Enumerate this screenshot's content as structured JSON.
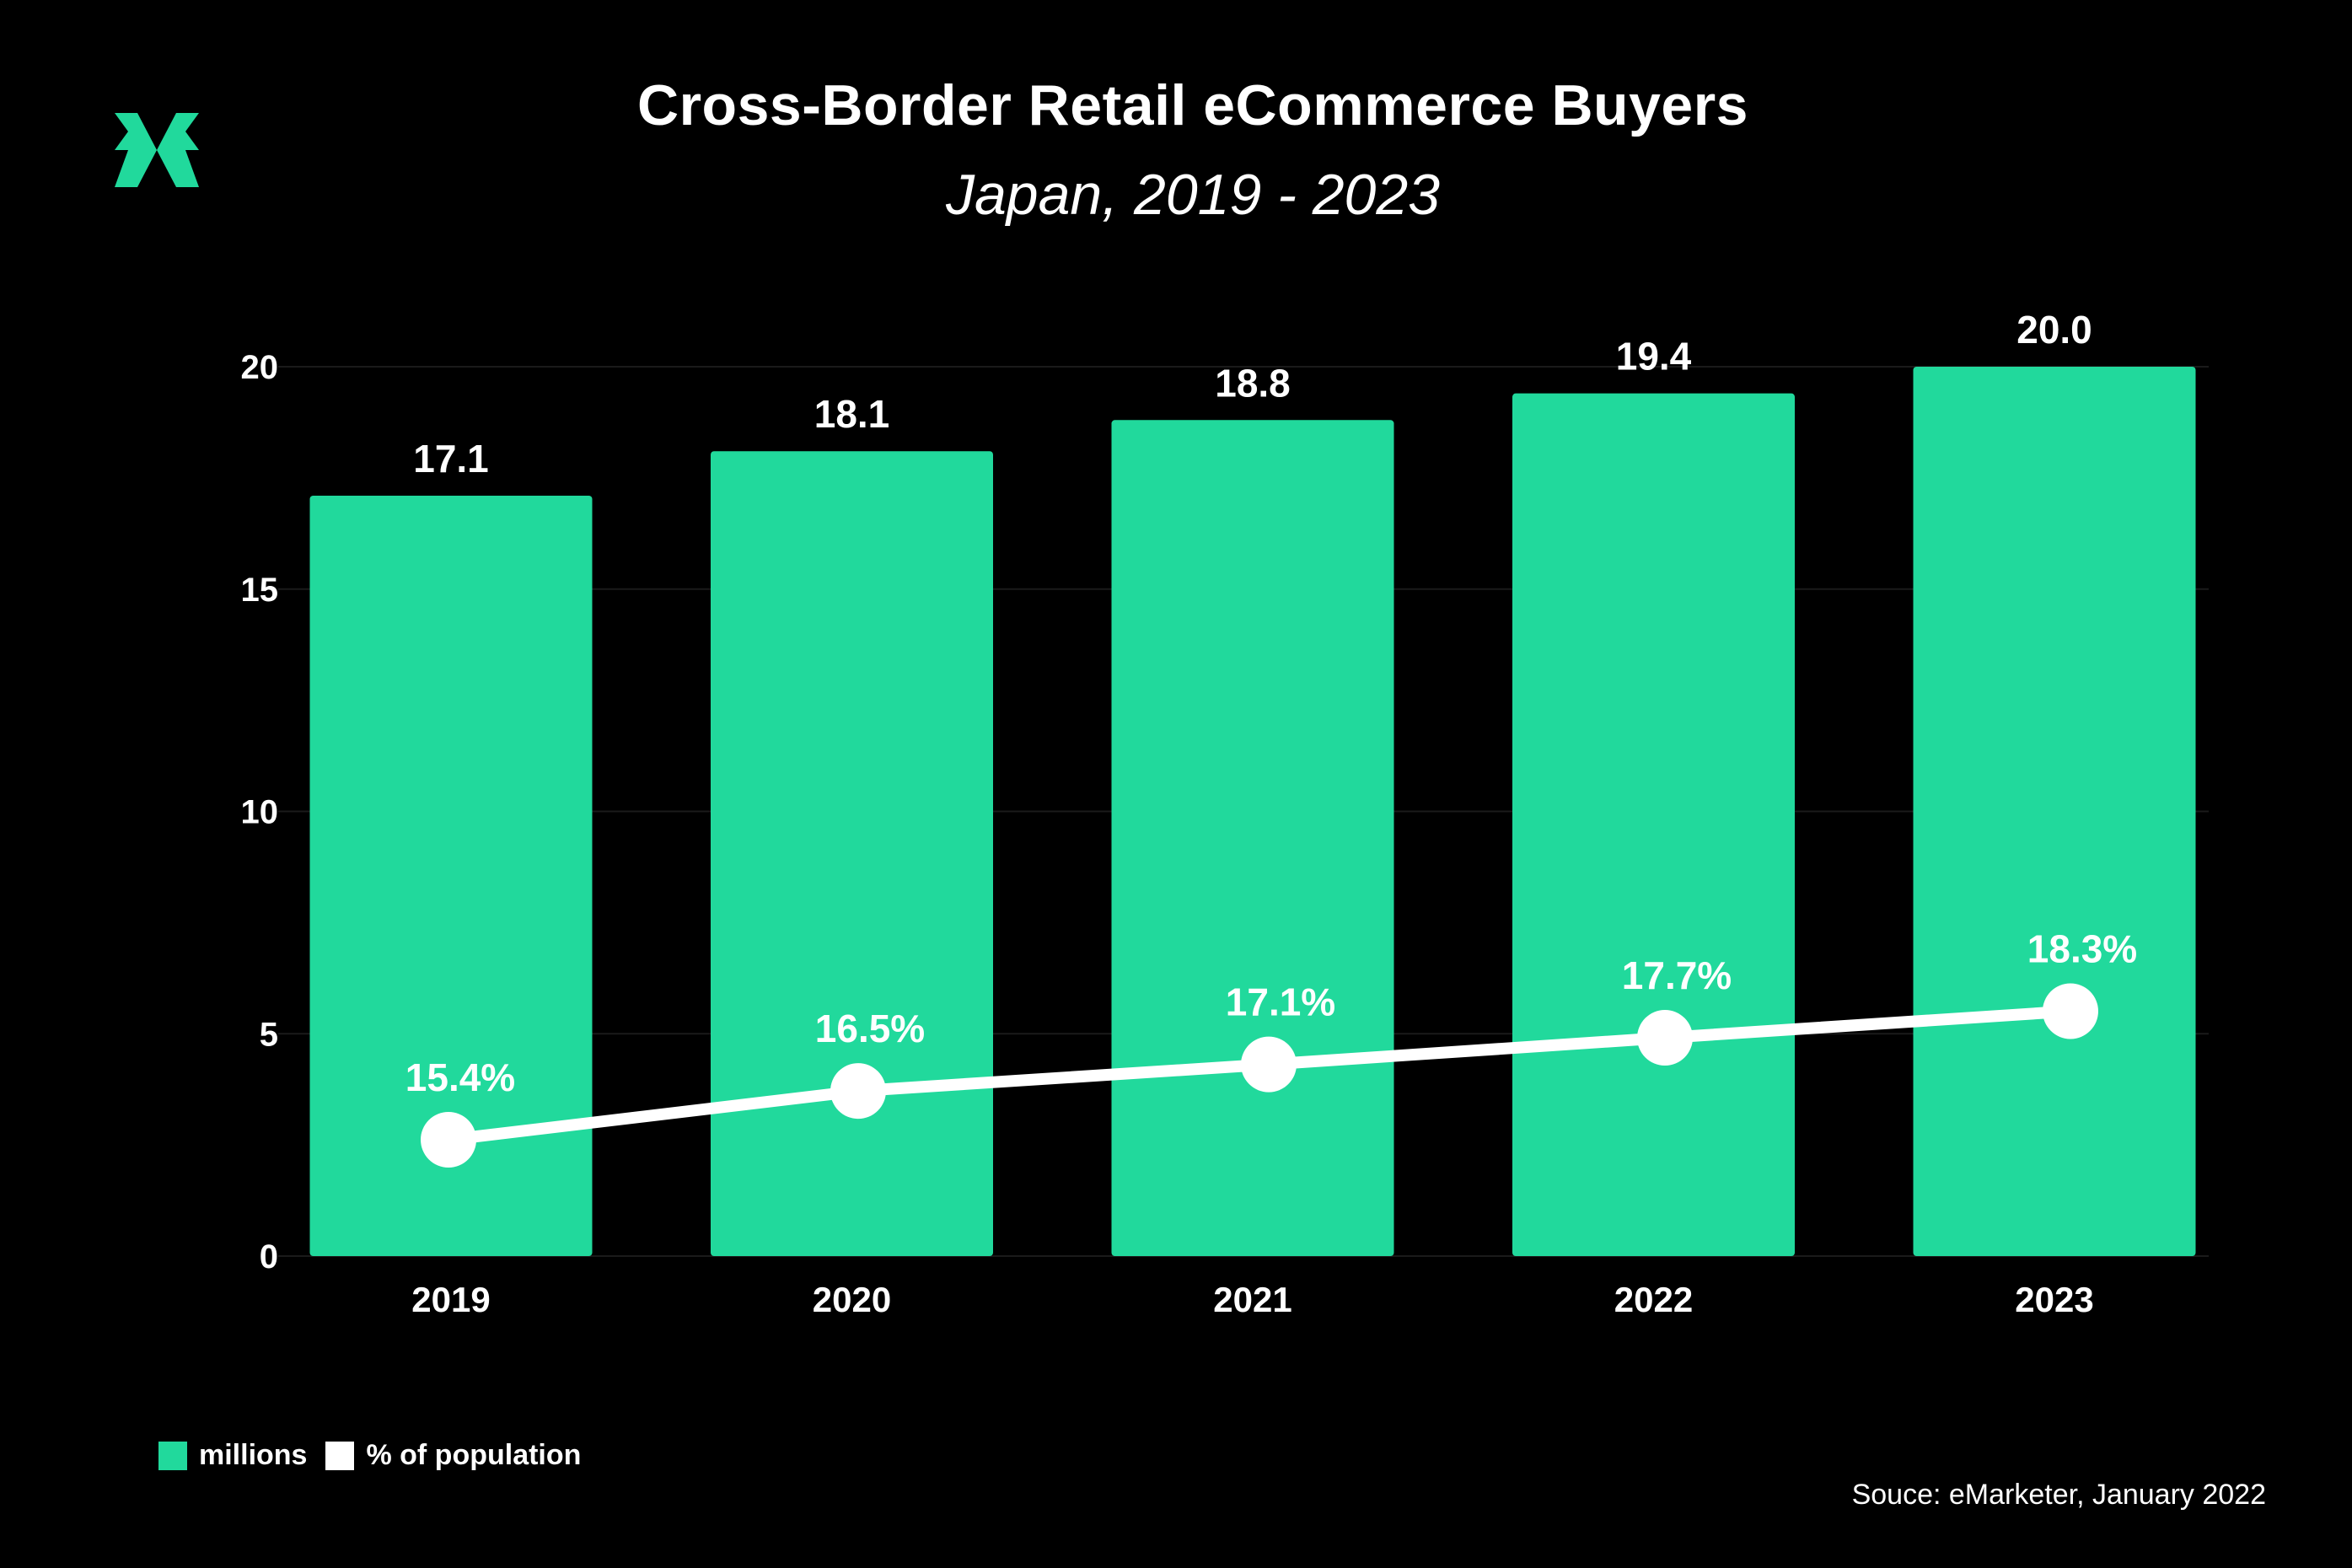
{
  "header": {
    "title": "Cross-Border Retail eCommerce Buyers",
    "subtitle": "Japan, 2019 - 2023"
  },
  "colors": {
    "background": "#000000",
    "bar": "#21D99C",
    "line": "#FFFFFF",
    "logo": "#21D99C",
    "grid": "#1A1A1A"
  },
  "legend": {
    "items": [
      {
        "label": "millions",
        "color": "#21D99C"
      },
      {
        "label": "% of population",
        "color": "#FFFFFF"
      }
    ]
  },
  "source": "Souce: eMarketer, January 2022",
  "chart_data": {
    "type": "bar",
    "title": "Cross-Border Retail eCommerce Buyers",
    "subtitle": "Japan, 2019 - 2023",
    "categories": [
      "2019",
      "2020",
      "2021",
      "2022",
      "2023"
    ],
    "ylim": [
      0,
      20
    ],
    "yticks": [
      0,
      5,
      10,
      15,
      20
    ],
    "grid": true,
    "legend_position": "bottom-left",
    "series": [
      {
        "name": "millions",
        "type": "bar",
        "values": [
          17.1,
          18.1,
          18.8,
          19.4,
          20.0
        ],
        "labels": [
          "17.1",
          "18.1",
          "18.8",
          "19.4",
          "20.0"
        ]
      },
      {
        "name": "% of population",
        "type": "line",
        "values": [
          15.4,
          16.5,
          17.1,
          17.7,
          18.3
        ],
        "labels": [
          "15.4%",
          "16.5%",
          "17.1%",
          "17.7%",
          "18.3%"
        ]
      }
    ]
  }
}
